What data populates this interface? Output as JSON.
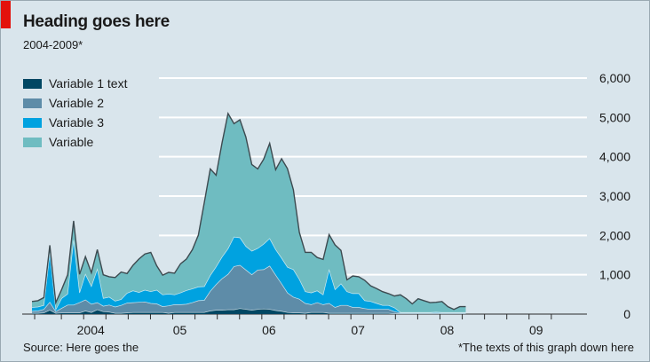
{
  "title": "Heading goes here",
  "subtitle": "2004-2009*",
  "source": "Source: Here goes the",
  "footnote": "*The texts of this graph down here",
  "colors": {
    "background": "#d9e5ec",
    "series": [
      "#004763",
      "#5e8ca8",
      "#00a2e0",
      "#6fbcc1"
    ],
    "outline": "#3d4a50",
    "accent": "#e3120b"
  },
  "chart_data": {
    "type": "area",
    "stacked": true,
    "grid": true,
    "legend_position": "top-left",
    "ylim": [
      0,
      6000
    ],
    "y_ticks": [
      0,
      1000,
      2000,
      3000,
      4000,
      5000,
      6000
    ],
    "y_tick_labels": [
      "0",
      "1,000",
      "2,000",
      "3,000",
      "4,000",
      "5,000",
      "6,000"
    ],
    "x_start": 2003.67,
    "x_step": 0.0667,
    "x_range": [
      2003.6,
      2009.9
    ],
    "x_tick_labels": [
      {
        "label": "2004",
        "x": 2004.0
      },
      {
        "label": "05",
        "x": 2005.0
      },
      {
        "label": "06",
        "x": 2006.0
      },
      {
        "label": "07",
        "x": 2007.0
      },
      {
        "label": "08",
        "x": 2008.0
      },
      {
        "label": "09",
        "x": 2009.0
      }
    ],
    "x_tick_marks": [
      2003.7,
      2004.0,
      2004.25,
      2004.5,
      2004.75,
      2005.0,
      2005.25,
      2005.5,
      2005.75,
      2006.0,
      2006.25,
      2006.5,
      2006.75,
      2007.0,
      2007.25,
      2007.5,
      2007.75,
      2008.0,
      2008.25,
      2008.5,
      2008.75,
      2009.0,
      2009.25,
      2009.5
    ],
    "series": [
      {
        "name": "Variable 1 text",
        "values": [
          20,
          20,
          30,
          100,
          20,
          30,
          30,
          30,
          30,
          80,
          40,
          110,
          60,
          50,
          20,
          20,
          30,
          40,
          40,
          40,
          40,
          40,
          40,
          20,
          40,
          40,
          40,
          40,
          40,
          40,
          80,
          100,
          100,
          110,
          110,
          140,
          120,
          100,
          120,
          130,
          120,
          90,
          70,
          40,
          30,
          30,
          20,
          40,
          40,
          40,
          20,
          20,
          20,
          20,
          20,
          20,
          20,
          20,
          20,
          20,
          20,
          10,
          10,
          10,
          10,
          10,
          10,
          10,
          10,
          10,
          10,
          10,
          10,
          10
        ]
      },
      {
        "name": "Variable 2",
        "values": [
          50,
          60,
          90,
          200,
          40,
          120,
          200,
          200,
          260,
          280,
          210,
          180,
          140,
          180,
          160,
          200,
          250,
          250,
          260,
          270,
          230,
          220,
          150,
          190,
          200,
          200,
          210,
          250,
          300,
          310,
          500,
          650,
          800,
          900,
          1100,
          1100,
          1000,
          900,
          1000,
          1000,
          1100,
          900,
          700,
          500,
          400,
          350,
          250,
          200,
          250,
          200,
          250,
          150,
          200,
          200,
          150,
          150,
          120,
          100,
          100,
          100,
          100,
          50,
          20,
          20,
          20,
          20,
          20,
          20,
          20,
          20,
          20,
          20,
          20,
          20
        ]
      },
      {
        "name": "Variable 3",
        "values": [
          100,
          100,
          100,
          1250,
          50,
          250,
          280,
          1650,
          250,
          650,
          450,
          850,
          200,
          200,
          150,
          150,
          250,
          300,
          250,
          300,
          300,
          350,
          300,
          300,
          250,
          300,
          350,
          350,
          350,
          350,
          400,
          450,
          550,
          650,
          750,
          700,
          600,
          600,
          550,
          650,
          700,
          650,
          650,
          650,
          700,
          500,
          300,
          300,
          300,
          250,
          850,
          450,
          550,
          350,
          350,
          350,
          200,
          200,
          150,
          100,
          100,
          100,
          10,
          10,
          10,
          10,
          10,
          10,
          20,
          10,
          10,
          10,
          10,
          10
        ]
      },
      {
        "name": "Variable",
        "values": [
          150,
          160,
          200,
          200,
          180,
          230,
          490,
          490,
          470,
          450,
          350,
          500,
          600,
          520,
          600,
          700,
          500,
          650,
          850,
          920,
          1000,
          620,
          500,
          550,
          550,
          740,
          800,
          1000,
          1320,
          2140,
          2710,
          2330,
          2910,
          3440,
          2880,
          3000,
          2780,
          2200,
          2020,
          2160,
          2420,
          2030,
          2530,
          2510,
          2030,
          1200,
          1000,
          1030,
          850,
          900,
          900,
          1140,
          850,
          300,
          450,
          430,
          520,
          400,
          380,
          350,
          300,
          300,
          450,
          350,
          220,
          350,
          300,
          250,
          250,
          280,
          150,
          80,
          150,
          150
        ]
      }
    ]
  }
}
